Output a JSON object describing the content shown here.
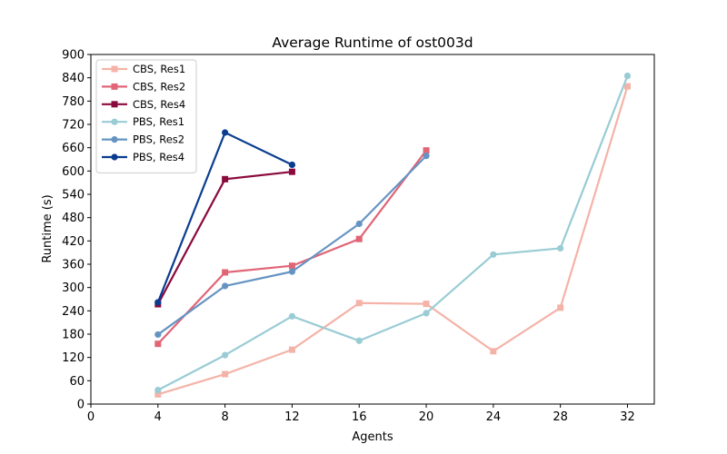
{
  "chart_data": {
    "type": "line",
    "title": "Average Runtime of ost003d",
    "xlabel": "Agents",
    "ylabel": "Runtime (s)",
    "xlim": [
      0,
      33.6
    ],
    "ylim": [
      0,
      900
    ],
    "xticks": [
      0,
      4,
      8,
      12,
      16,
      20,
      24,
      28,
      32
    ],
    "yticks": [
      0,
      60,
      120,
      180,
      240,
      300,
      360,
      420,
      480,
      540,
      600,
      660,
      720,
      780,
      840,
      900
    ],
    "grid": false,
    "legend_position": "top-left",
    "series": [
      {
        "name": "CBS, Res1",
        "color": "#f4b3a8",
        "marker": "square",
        "x": [
          4,
          8,
          12,
          16,
          20,
          24,
          28,
          32
        ],
        "y": [
          25,
          77,
          140,
          260,
          258,
          136,
          248,
          818
        ]
      },
      {
        "name": "CBS, Res2",
        "color": "#e06577",
        "marker": "square",
        "x": [
          4,
          8,
          12,
          16,
          20
        ],
        "y": [
          155,
          339,
          356,
          425,
          653
        ]
      },
      {
        "name": "CBS, Res4",
        "color": "#8b0a3d",
        "marker": "square",
        "x": [
          4,
          8,
          12
        ],
        "y": [
          257,
          579,
          598
        ]
      },
      {
        "name": "PBS, Res1",
        "color": "#99ccd4",
        "marker": "circle",
        "x": [
          4,
          8,
          12,
          16,
          20,
          24,
          28,
          32
        ],
        "y": [
          36,
          126,
          226,
          163,
          234,
          385,
          401,
          845
        ]
      },
      {
        "name": "PBS, Res2",
        "color": "#6694c2",
        "marker": "circle",
        "x": [
          4,
          8,
          12,
          16,
          20
        ],
        "y": [
          179,
          304,
          341,
          464,
          639
        ]
      },
      {
        "name": "PBS, Res4",
        "color": "#0a3d8f",
        "marker": "circle",
        "x": [
          4,
          8,
          12
        ],
        "y": [
          262,
          699,
          616
        ]
      }
    ]
  }
}
